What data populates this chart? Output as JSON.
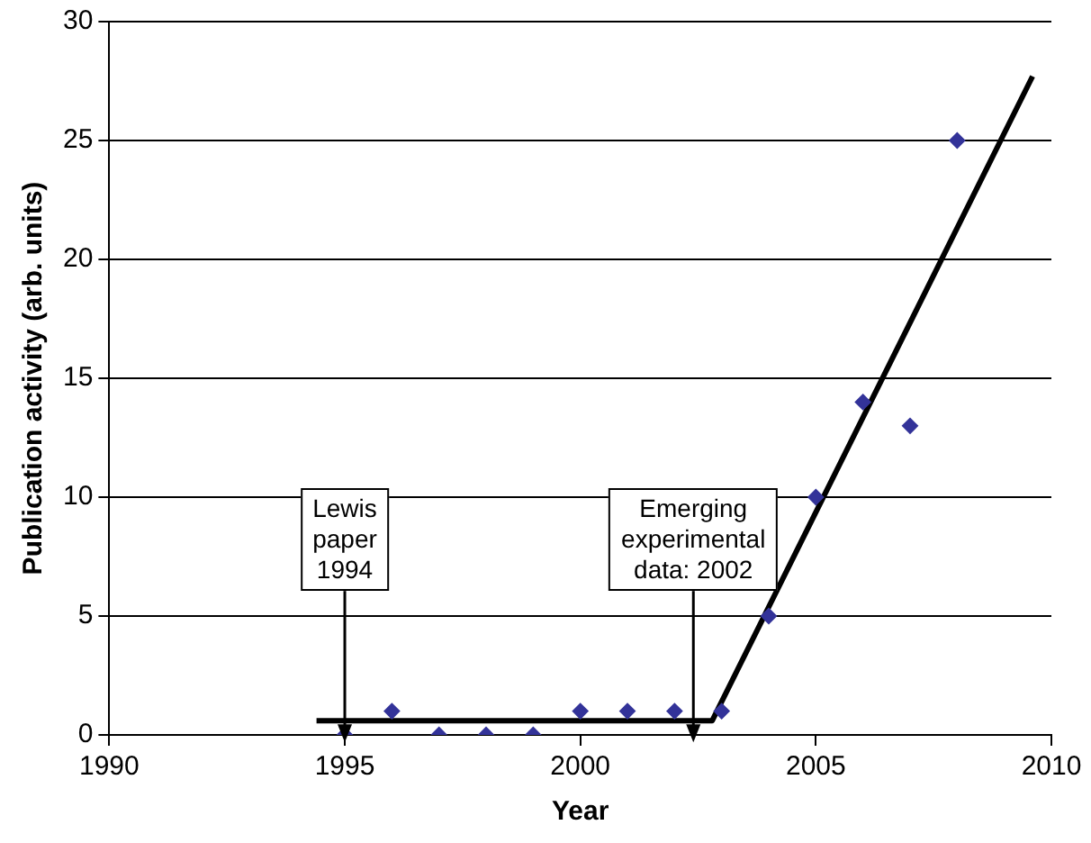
{
  "chart_data": {
    "type": "scatter",
    "xlabel": "Year",
    "ylabel": "Publication activity (arb. units)",
    "xlim": [
      1990,
      2010
    ],
    "xticks": [
      1990,
      1995,
      2000,
      2005,
      2010
    ],
    "ylim": [
      0,
      30
    ],
    "yticks": [
      0,
      5,
      10,
      15,
      20,
      25,
      30
    ],
    "grid": "y",
    "marker": "diamond",
    "series": [
      {
        "color": "#333399",
        "x": [
          1995,
          1996,
          1997,
          1998,
          1999,
          2000,
          2001,
          2002,
          2003,
          2004,
          2005,
          2006,
          2007,
          2008
        ],
        "values": [
          0,
          1,
          0,
          0,
          0,
          1,
          1,
          1,
          1,
          5,
          10,
          14,
          13,
          25
        ]
      },
      {
        "type": "line",
        "color": "#000000",
        "marker": "none",
        "x": [
          1994.4,
          2002.8,
          2009.6
        ],
        "values": [
          0.6,
          0.6,
          27.7
        ]
      }
    ],
    "annotations": [
      {
        "text": "Lewis\npaper\n1994",
        "x": 1995,
        "y": 0.6
      },
      {
        "text": "Emerging\nexperimental\ndata: 2002",
        "x": 2002.4,
        "y": 0.6
      }
    ]
  }
}
